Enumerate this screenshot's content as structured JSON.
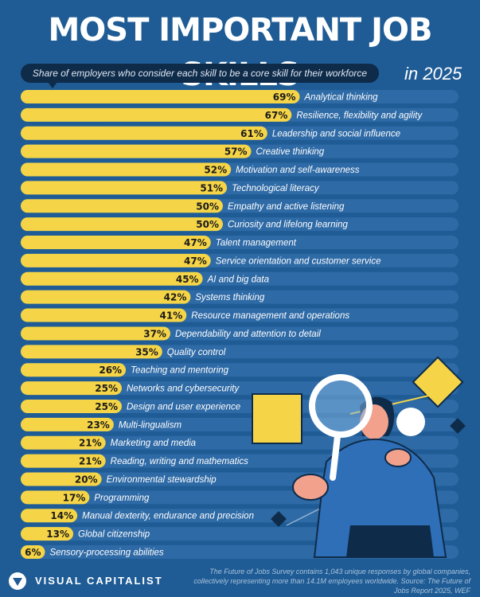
{
  "header": {
    "title": "MOST IMPORTANT JOB SKILLS",
    "subtitle": "Share of employers who consider each skill to be a core skill for their workforce",
    "year": "in 2025"
  },
  "footer": {
    "brand": "VISUAL CAPITALIST",
    "note": "The Future of Jobs Survey contains 1,043 unique responses by global companies, collectively representing more than 14.1M employees worldwide. Source: The Future of Jobs Report 2025, WEF"
  },
  "colors": {
    "background": "#1f5c95",
    "track": "#2e6aa6",
    "bar": "#f5d547",
    "label_text": "#ffffff",
    "value_text": "#1a1a1a"
  },
  "chart_data": {
    "type": "bar",
    "orientation": "horizontal",
    "xlim": [
      0,
      100
    ],
    "categories": [
      "Analytical thinking",
      "Resilience, flexibility and agility",
      "Leadership and social influence",
      "Creative thinking",
      "Motivation and self-awareness",
      "Technological literacy",
      "Empathy and active listening",
      "Curiosity and lifelong learning",
      "Talent management",
      "Service orientation and customer service",
      "AI and big data",
      "Systems thinking",
      "Resource management and operations",
      "Dependability and attention to detail",
      "Quality control",
      "Teaching and mentoring",
      "Networks and cybersecurity",
      "Design and user experience",
      "Multi-lingualism",
      "Marketing and media",
      "Reading, writing and mathematics",
      "Environmental stewardship",
      "Programming",
      "Manual dexterity, endurance and precision",
      "Global citizenship",
      "Sensory-processing abilities"
    ],
    "values": [
      69,
      67,
      61,
      57,
      52,
      51,
      50,
      50,
      47,
      47,
      45,
      42,
      41,
      37,
      35,
      26,
      25,
      25,
      23,
      21,
      21,
      20,
      17,
      14,
      13,
      6
    ],
    "value_labels": [
      "69%",
      "67%",
      "61%",
      "57%",
      "52%",
      "51%",
      "50%",
      "50%",
      "47%",
      "47%",
      "45%",
      "42%",
      "41%",
      "37%",
      "35%",
      "26%",
      "25%",
      "25%",
      "23%",
      "21%",
      "21%",
      "20%",
      "17%",
      "14%",
      "13%",
      "6%"
    ],
    "grid": false
  }
}
